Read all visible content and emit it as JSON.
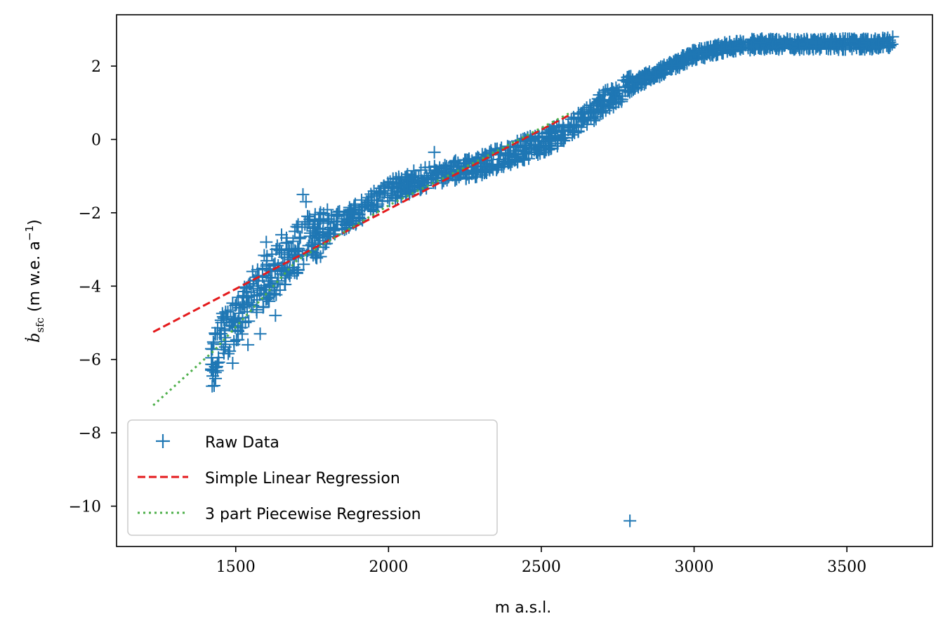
{
  "chart_data": {
    "type": "scatter",
    "xlabel": "m a.s.l.",
    "ylabel_symbol": "ḃ",
    "ylabel_subscript": "sfc",
    "ylabel_units": "(m w.e. a",
    "ylabel_units_sup": "−1",
    "ylabel_close": ")",
    "xlim": [
      1110,
      3780
    ],
    "ylim": [
      -11.1,
      3.4
    ],
    "xticks": [
      1500,
      2000,
      2500,
      3000,
      3500
    ],
    "xtick_labels": [
      "1500",
      "2000",
      "2500",
      "3000",
      "3500"
    ],
    "yticks": [
      2,
      0,
      -2,
      -4,
      -6,
      -8,
      -10
    ],
    "ytick_labels": [
      "2",
      "0",
      "−2",
      "−4",
      "−6",
      "−8",
      "−10"
    ],
    "legend_position": "lower-left",
    "series": [
      {
        "name": "Raw Data",
        "kind": "scatter",
        "marker": "+",
        "color": "#1f77b4",
        "trend": [
          [
            1420,
            -6.3
          ],
          [
            1450,
            -5.4
          ],
          [
            1500,
            -5.0
          ],
          [
            1550,
            -4.2
          ],
          [
            1600,
            -3.8
          ],
          [
            1650,
            -3.4
          ],
          [
            1700,
            -3.0
          ],
          [
            1750,
            -2.7
          ],
          [
            1800,
            -2.4
          ],
          [
            1850,
            -2.2
          ],
          [
            1900,
            -2.0
          ],
          [
            2000,
            -1.4
          ],
          [
            2100,
            -1.1
          ],
          [
            2200,
            -0.9
          ],
          [
            2300,
            -0.7
          ],
          [
            2400,
            -0.4
          ],
          [
            2500,
            -0.1
          ],
          [
            2600,
            0.3
          ],
          [
            2700,
            1.0
          ],
          [
            2800,
            1.5
          ],
          [
            2900,
            1.9
          ],
          [
            3000,
            2.3
          ],
          [
            3100,
            2.5
          ],
          [
            3200,
            2.6
          ],
          [
            3300,
            2.6
          ],
          [
            3400,
            2.6
          ],
          [
            3500,
            2.6
          ],
          [
            3600,
            2.6
          ],
          [
            3650,
            2.65
          ]
        ],
        "outliers": [
          [
            1720,
            -1.5
          ],
          [
            1730,
            -1.7
          ],
          [
            2150,
            -0.35
          ],
          [
            1650,
            -2.6
          ],
          [
            1600,
            -2.8
          ],
          [
            1630,
            -4.8
          ],
          [
            1580,
            -5.3
          ],
          [
            1490,
            -6.1
          ],
          [
            1540,
            -5.6
          ],
          [
            2790,
            -10.4
          ],
          [
            3580,
            2.7
          ],
          [
            3620,
            2.7
          ],
          [
            3540,
            2.6
          ]
        ]
      },
      {
        "name": "Simple Linear Regression",
        "kind": "line",
        "dash": "dashed",
        "color": "#e41a1c",
        "x": [
          1230,
          2600
        ],
        "y": [
          -5.25,
          0.7
        ]
      },
      {
        "name": "3 part Piecewise Regression",
        "kind": "line",
        "dash": "dotted",
        "color": "#4daf4a",
        "x": [
          1230,
          1430,
          1700,
          2000,
          2300,
          2600
        ],
        "y": [
          -7.25,
          -5.75,
          -3.3,
          -1.8,
          -0.55,
          0.75
        ]
      }
    ]
  }
}
